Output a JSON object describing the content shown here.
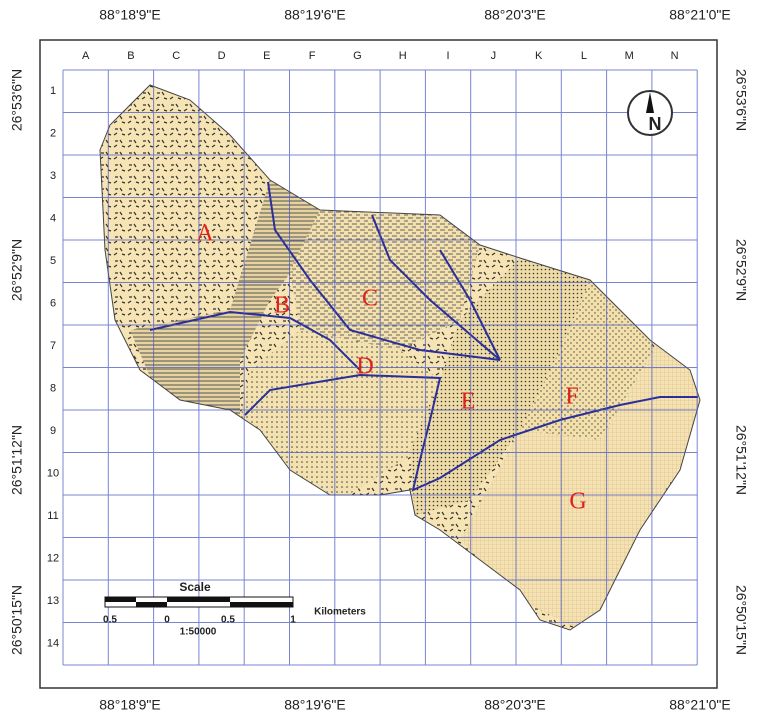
{
  "map": {
    "top_labels": [
      "88°18'9\"E",
      "88°19'6\"E",
      "88°20'3\"E",
      "88°21'0\"E"
    ],
    "bottom_labels": [
      "88°18'9\"E",
      "88°19'6\"E",
      "88°20'3\"E",
      "88°21'0\"E"
    ],
    "left_labels": [
      "26°53'6\"N",
      "26°52'9\"N",
      "26°51'12\"N",
      "26°50'15\"N"
    ],
    "right_labels": [
      "26°53'6\"N",
      "26°52'9\"N",
      "26°51'12\"N",
      "26°50'15\"N"
    ],
    "columns": [
      "A",
      "B",
      "C",
      "D",
      "E",
      "F",
      "G",
      "H",
      "I",
      "J",
      "K",
      "L",
      "M",
      "N"
    ],
    "rows": [
      "1",
      "2",
      "3",
      "4",
      "5",
      "6",
      "7",
      "8",
      "9",
      "10",
      "11",
      "12",
      "13",
      "14"
    ],
    "zones": [
      "A",
      "B",
      "C",
      "D",
      "E",
      "F",
      "G"
    ],
    "scale": {
      "title": "Scale",
      "ticks": [
        "0.5",
        "0",
        "0.5",
        "1"
      ],
      "unit": "Kilometers",
      "ratio": "1:50000"
    },
    "north": "N"
  }
}
